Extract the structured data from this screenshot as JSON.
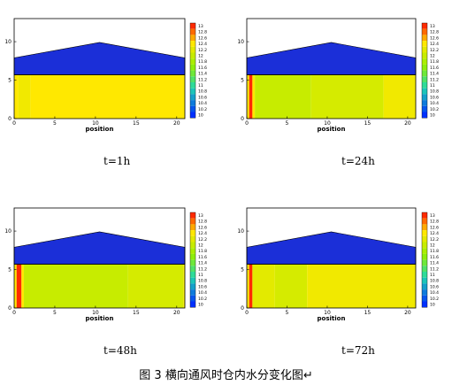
{
  "caption": "图 3 横向通风时仓内水分变化图↵",
  "colorscale": {
    "ticks": [
      "13",
      "12.8",
      "12.6",
      "12.4",
      "12.2",
      "12",
      "11.8",
      "11.6",
      "11.4",
      "11.2",
      "11",
      "10.8",
      "10.6",
      "10.4",
      "10.2",
      "10"
    ],
    "colors": {
      "high": "#ff2b00",
      "mid_high": "#ffe800",
      "mid": "#96f000",
      "mid_low": "#1fd8b0",
      "low": "#0030ff"
    }
  },
  "roof_color": "#1b2fd8",
  "chart_data": [
    {
      "type": "heatmap",
      "time_label": "t=1h",
      "xlabel": "position",
      "xlim": [
        0,
        21
      ],
      "ylim": [
        0,
        13
      ],
      "xticks": [
        "0",
        "5",
        "10",
        "15",
        "20"
      ],
      "yticks": [
        "0",
        "5",
        "10"
      ],
      "bed_top": 5.7,
      "roof_eave": 7.9,
      "roof_peak": 9.9,
      "roof_peak_x": 10.5,
      "zones": [
        {
          "x0": 0,
          "x1": 0.5,
          "value": 12.4
        },
        {
          "x0": 0.5,
          "x1": 2,
          "value": 12.3
        },
        {
          "x0": 2,
          "x1": 21,
          "value": 12.4
        }
      ]
    },
    {
      "type": "heatmap",
      "time_label": "t=24h",
      "xlabel": "position",
      "xlim": [
        0,
        21
      ],
      "ylim": [
        0,
        13
      ],
      "xticks": [
        "0",
        "5",
        "10",
        "15",
        "20"
      ],
      "yticks": [
        "0",
        "5",
        "10"
      ],
      "bed_top": 5.7,
      "roof_eave": 7.9,
      "roof_peak": 9.9,
      "roof_peak_x": 10.5,
      "zones": [
        {
          "x0": 0,
          "x1": 0.3,
          "value": 12.4
        },
        {
          "x0": 0.3,
          "x1": 0.7,
          "value": 13.0
        },
        {
          "x0": 0.7,
          "x1": 1.0,
          "value": 12.4
        },
        {
          "x0": 1.0,
          "x1": 8.0,
          "value": 12.0
        },
        {
          "x0": 8.0,
          "x1": 17.0,
          "value": 12.1
        },
        {
          "x0": 17.0,
          "x1": 21,
          "value": 12.3
        }
      ]
    },
    {
      "type": "heatmap",
      "time_label": "t=48h",
      "xlabel": "position",
      "xlim": [
        0,
        21
      ],
      "ylim": [
        0,
        13
      ],
      "xticks": [
        "0",
        "5",
        "10",
        "15",
        "20"
      ],
      "yticks": [
        "0",
        "5",
        "10"
      ],
      "bed_top": 5.7,
      "roof_eave": 7.9,
      "roof_peak": 9.9,
      "roof_peak_x": 10.5,
      "zones": [
        {
          "x0": 0,
          "x1": 0.3,
          "value": 12.4
        },
        {
          "x0": 0.3,
          "x1": 0.9,
          "value": 13.0
        },
        {
          "x0": 0.9,
          "x1": 1.2,
          "value": 12.4
        },
        {
          "x0": 1.2,
          "x1": 14.0,
          "value": 12.0
        },
        {
          "x0": 14.0,
          "x1": 20.8,
          "value": 12.1
        },
        {
          "x0": 20.8,
          "x1": 21,
          "value": 12.3
        }
      ]
    },
    {
      "type": "heatmap",
      "time_label": "t=72h",
      "xlabel": "position",
      "xlim": [
        0,
        21
      ],
      "ylim": [
        0,
        13
      ],
      "xticks": [
        "0",
        "5",
        "10",
        "15",
        "20"
      ],
      "yticks": [
        "0",
        "5",
        "10"
      ],
      "bed_top": 5.7,
      "roof_eave": 7.9,
      "roof_peak": 9.9,
      "roof_peak_x": 10.5,
      "zones": [
        {
          "x0": 0,
          "x1": 0.3,
          "value": 12.4
        },
        {
          "x0": 0.3,
          "x1": 0.7,
          "value": 13.0
        },
        {
          "x0": 0.7,
          "x1": 3.5,
          "value": 12.2
        },
        {
          "x0": 3.5,
          "x1": 7.5,
          "value": 12.1
        },
        {
          "x0": 7.5,
          "x1": 21,
          "value": 12.3
        }
      ]
    }
  ]
}
